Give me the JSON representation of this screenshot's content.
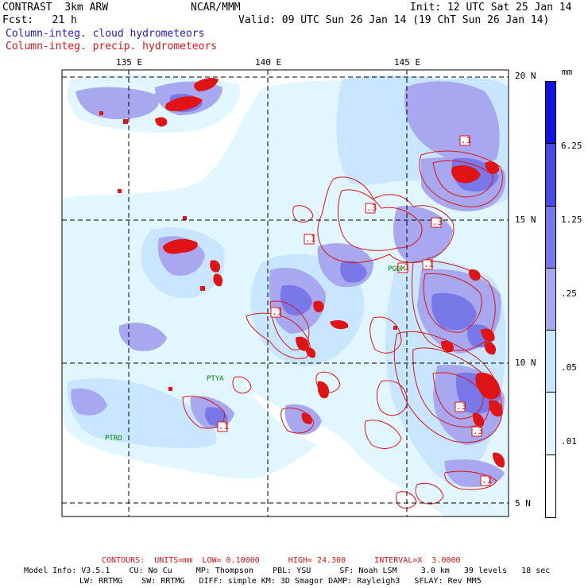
{
  "header": {
    "model": "CONTRAST  3km ARW",
    "org": "NCAR/MMM",
    "init": "Init: 12 UTC Sat 25 Jan 14",
    "fcst": "Fcst:   21 h",
    "valid": "Valid: 09 UTC Sun 26 Jan 14 (19 ChT Sun 26 Jan 14)",
    "field_shaded": "Column-integ. cloud hydrometeors",
    "field_contour": "Column-integ. precip. hydrometeors"
  },
  "map": {
    "lon_labels": [
      "135 E",
      "140 E",
      "145 E"
    ],
    "lat_labels": [
      "20 N",
      "15 N",
      "10 N",
      "5 N"
    ],
    "stations": [
      "PGUM",
      "PTYA",
      "PTRO"
    ],
    "contour_labels": [
      ".1",
      ".3",
      ".1",
      ".3",
      ".1",
      ".1",
      ".1",
      ".3",
      ".3",
      ".1",
      ".1"
    ]
  },
  "colorbar": {
    "unit": "mm",
    "ticks": [
      "6.25",
      "1.25",
      ".25",
      ".05",
      ".01"
    ],
    "colors": [
      "#1010e0",
      "#4a4ae6",
      "#7878ea",
      "#a8a8f0",
      "#c8e6ff",
      "#e2f6ff",
      "#ffffff"
    ]
  },
  "footer": {
    "contours": "CONTOURS:  UNITS=mm  LOW= 0.10000      HIGH= 24.300      INTERVAL=X  3.0000",
    "model_info_1": "Model Info: V3.5.1    CU: No Cu     MP: Thompson    PBL: YSU      SF: Noah LSM     3.0 km   39 levels   18 sec",
    "model_info_2": "LW: RRTMG    SW: RRTMG   DIFF: simple KM: 3D Smagor DAMP: Rayleigh3   SFLAY: Rev MM5"
  }
}
